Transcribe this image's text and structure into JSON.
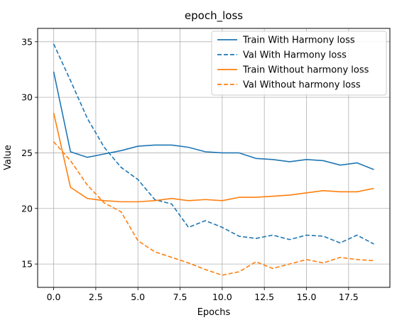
{
  "chart_data": {
    "type": "line",
    "title": "epoch_loss",
    "xlabel": "Epochs",
    "ylabel": "Value",
    "xlim": [
      -0.95,
      19.95
    ],
    "ylim": [
      12.9,
      36.2
    ],
    "xticks": [
      0.0,
      2.5,
      5.0,
      7.5,
      10.0,
      12.5,
      15.0,
      17.5
    ],
    "xtick_labels": [
      "0.0",
      "2.5",
      "5.0",
      "7.5",
      "10.0",
      "12.5",
      "15.0",
      "17.5"
    ],
    "yticks": [
      15,
      20,
      25,
      30,
      35
    ],
    "ytick_labels": [
      "15",
      "20",
      "25",
      "30",
      "35"
    ],
    "grid": true,
    "legend_position": "top-right",
    "x": [
      0,
      1,
      2,
      3,
      4,
      5,
      6,
      7,
      8,
      9,
      10,
      11,
      12,
      13,
      14,
      15,
      16,
      17,
      18,
      19
    ],
    "series": [
      {
        "name": "Train With Harmony loss",
        "color": "#1f77b4",
        "style": "solid",
        "values": [
          32.3,
          25.1,
          24.6,
          24.9,
          25.2,
          25.6,
          25.7,
          25.7,
          25.5,
          25.1,
          25.0,
          25.0,
          24.5,
          24.4,
          24.2,
          24.4,
          24.3,
          23.9,
          24.1,
          23.5
        ]
      },
      {
        "name": "Val With Harmony loss",
        "color": "#1f77b4",
        "style": "dashed",
        "values": [
          34.8,
          31.5,
          28.1,
          25.5,
          23.7,
          22.6,
          20.8,
          20.4,
          18.3,
          18.9,
          18.3,
          17.5,
          17.3,
          17.6,
          17.2,
          17.6,
          17.5,
          16.9,
          17.6,
          16.8
        ]
      },
      {
        "name": "Train Without harmony loss",
        "color": "#ff7f0e",
        "style": "solid",
        "values": [
          28.6,
          21.9,
          20.9,
          20.7,
          20.6,
          20.6,
          20.7,
          20.9,
          20.7,
          20.8,
          20.7,
          21.0,
          21.0,
          21.1,
          21.2,
          21.4,
          21.6,
          21.5,
          21.5,
          21.8
        ]
      },
      {
        "name": "Val Without harmony loss",
        "color": "#ff7f0e",
        "style": "dashed",
        "values": [
          26.0,
          24.3,
          22.1,
          20.5,
          19.7,
          17.1,
          16.1,
          15.6,
          15.1,
          14.5,
          14.0,
          14.3,
          15.2,
          14.6,
          15.0,
          15.4,
          15.1,
          15.6,
          15.4,
          15.3
        ]
      }
    ]
  }
}
